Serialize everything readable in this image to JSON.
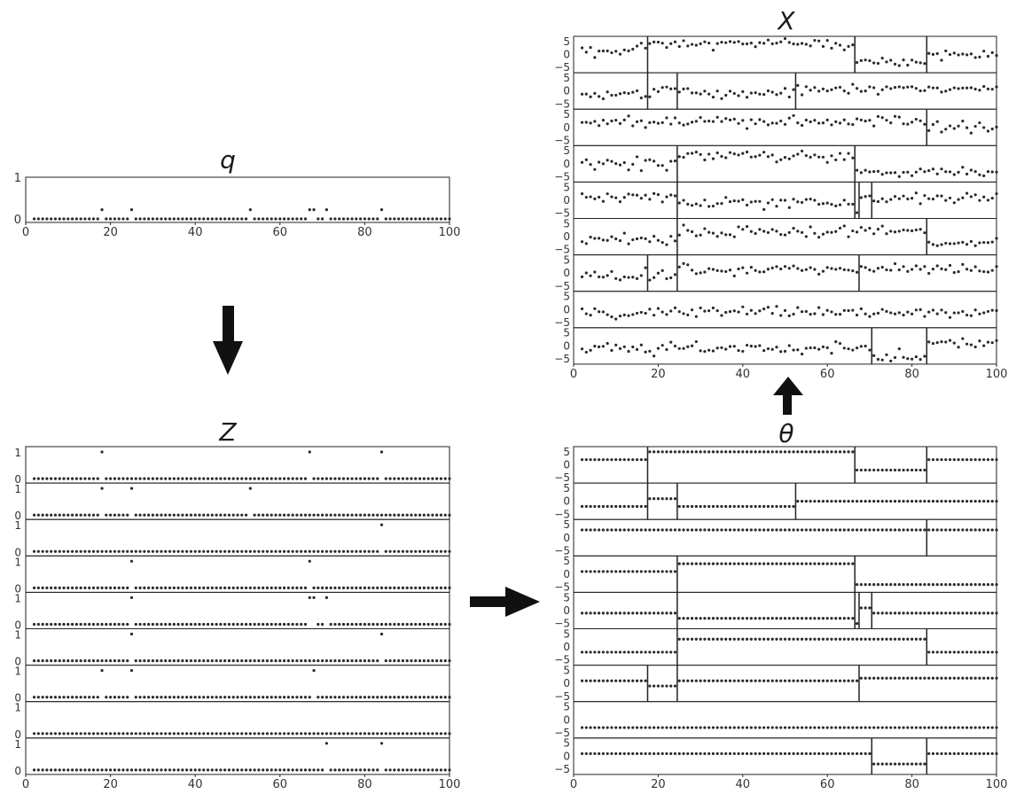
{
  "titles": {
    "q": "q",
    "z": "Z",
    "theta": "θ",
    "x": "X"
  },
  "arrow_colors": {
    "fill": "#111111"
  },
  "colors": {
    "dot": "#2a2a2a",
    "axis": "#222222",
    "text": "#333333",
    "title": "#1a1a1a"
  },
  "chart_data": [
    {
      "id": "q",
      "type": "scatter",
      "title": "q",
      "xlim": [
        0,
        100
      ],
      "ylim": [
        0,
        1
      ],
      "xticks": [
        0,
        20,
        40,
        60,
        80,
        100
      ],
      "yticks": [
        0,
        1
      ],
      "x": [
        2,
        100
      ],
      "baseline": 0,
      "marked": [
        18,
        25,
        53,
        67,
        68,
        71,
        84
      ],
      "marked_value": 0.22
    },
    {
      "id": "Z",
      "type": "scatter",
      "title": "Z",
      "xlim": [
        0,
        100
      ],
      "ylim": [
        0,
        1
      ],
      "xticks": [
        0,
        20,
        40,
        60,
        80,
        100
      ],
      "yticks": [
        0,
        1
      ],
      "x": [
        2,
        100
      ],
      "rows": [
        [
          18,
          67,
          84
        ],
        [
          18,
          25,
          53
        ],
        [
          84
        ],
        [
          25,
          67
        ],
        [
          25,
          67,
          68,
          71
        ],
        [
          25,
          84
        ],
        [
          18,
          25,
          68
        ],
        [],
        [
          71,
          84
        ]
      ]
    },
    {
      "id": "theta",
      "type": "scatter",
      "title": "θ",
      "xlim": [
        0,
        100
      ],
      "ylim": [
        -7,
        7
      ],
      "xticks": [
        0,
        20,
        40,
        60,
        80,
        100
      ],
      "yticks": [
        5,
        0,
        -5
      ],
      "x": [
        2,
        100
      ],
      "rows": [
        {
          "breaks": [
            17.5,
            66.5,
            83.5
          ],
          "levels": [
            2,
            5,
            -2,
            2
          ]
        },
        {
          "breaks": [
            17.5,
            24.5,
            52.5
          ],
          "levels": [
            -2,
            1,
            -2,
            0
          ]
        },
        {
          "breaks": [
            83.5
          ],
          "levels": [
            3,
            3
          ]
        },
        {
          "breaks": [
            24.5,
            66.5
          ],
          "levels": [
            1,
            4,
            -4
          ]
        },
        {
          "breaks": [
            24.5,
            66.5,
            67.5,
            70.5
          ],
          "levels": [
            -1,
            -3,
            -5,
            1,
            -1
          ]
        },
        {
          "breaks": [
            24.5,
            83.5
          ],
          "levels": [
            -2,
            3,
            -2
          ]
        },
        {
          "breaks": [
            17.5,
            24.5,
            67.5
          ],
          "levels": [
            1,
            -1,
            1,
            2
          ]
        },
        {
          "breaks": [],
          "levels": [
            -3
          ]
        },
        {
          "breaks": [
            70.5,
            83.5
          ],
          "levels": [
            1,
            -3,
            1
          ]
        }
      ]
    },
    {
      "id": "X",
      "type": "scatter",
      "title": "X",
      "xlim": [
        0,
        100
      ],
      "ylim": [
        -7,
        7
      ],
      "xticks": [
        0,
        20,
        40,
        60,
        80,
        100
      ],
      "yticks": [
        5,
        0,
        -5
      ],
      "x": [
        2,
        100
      ],
      "noise": 1.1,
      "rows": [
        {
          "breaks": [
            17.5,
            66.5,
            83.5
          ],
          "levels": [
            1,
            4,
            -3,
            0
          ]
        },
        {
          "breaks": [
            17.5,
            24.5,
            52.5
          ],
          "levels": [
            -2,
            1,
            -1,
            1
          ]
        },
        {
          "breaks": [
            83.5
          ],
          "levels": [
            2,
            0
          ]
        },
        {
          "breaks": [
            24.5,
            66.5
          ],
          "levels": [
            0,
            3,
            -3
          ]
        },
        {
          "breaks": [
            24.5,
            66.5,
            67.5,
            70.5
          ],
          "levels": [
            1,
            -1,
            -4,
            1,
            1
          ]
        },
        {
          "breaks": [
            24.5,
            83.5
          ],
          "levels": [
            -1,
            2,
            -2
          ]
        },
        {
          "breaks": [
            17.5,
            24.5,
            67.5
          ],
          "levels": [
            -1,
            -1,
            1,
            2
          ]
        },
        {
          "breaks": [],
          "levels": [
            -1
          ]
        },
        {
          "breaks": [
            70.5,
            83.5
          ],
          "levels": [
            -1,
            -4,
            1
          ]
        }
      ]
    }
  ]
}
